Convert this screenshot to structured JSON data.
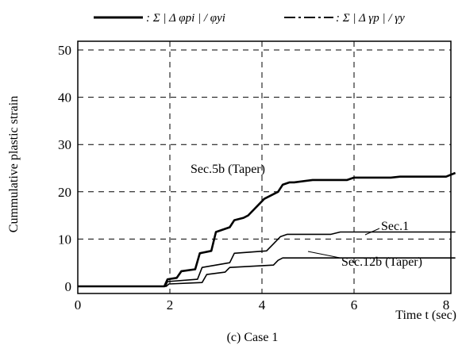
{
  "chart_data": {
    "type": "line",
    "title": "",
    "caption": "(c) Case 1",
    "xlabel": "Time t (sec)",
    "ylabel": "Cummulative plastic strain",
    "xlim": [
      0,
      8.2
    ],
    "ylim": [
      -1,
      52
    ],
    "x_ticks": [
      0,
      2,
      4,
      6,
      8
    ],
    "y_ticks": [
      0,
      10,
      20,
      30,
      40,
      50
    ],
    "x_tick_labels": [
      "0",
      "2",
      "4",
      "6",
      "8"
    ],
    "y_tick_labels": [
      "0",
      "10",
      "20",
      "30",
      "40",
      "50"
    ],
    "grid": "dashed",
    "legend_position": "top",
    "legend": [
      {
        "label": ": Σ | Δ φpi | / φyi",
        "style": "solid"
      },
      {
        "label": ": Σ | Δ γp | / γy",
        "style": "dash-dot"
      }
    ],
    "annotations": [
      {
        "text": "Sec.5b (Taper)",
        "series": 0
      },
      {
        "text": "Sec.1",
        "series": 1
      },
      {
        "text": "Sec.12b (Taper)",
        "series": 2
      }
    ],
    "series": [
      {
        "name": "Sec.5b (Taper)",
        "style": "solid",
        "stroke_width": 2.6,
        "x": [
          0,
          1.88,
          1.95,
          2.15,
          2.25,
          2.55,
          2.65,
          2.9,
          3.0,
          3.3,
          3.4,
          3.6,
          3.7,
          3.95,
          4.05,
          4.35,
          4.45,
          4.6,
          4.7,
          5.1,
          5.3,
          5.85,
          6.0,
          6.8,
          7.0,
          8.0,
          8.2
        ],
        "y": [
          0,
          0,
          1.5,
          1.8,
          3.2,
          3.6,
          7.0,
          7.5,
          11.5,
          12.5,
          14.0,
          14.5,
          15.0,
          17.5,
          18.5,
          20.0,
          21.5,
          22.0,
          22.0,
          22.5,
          22.5,
          22.5,
          23.0,
          23.0,
          23.2,
          23.2,
          24.0
        ]
      },
      {
        "name": "Sec.1",
        "style": "solid",
        "stroke_width": 1.6,
        "x": [
          0,
          1.9,
          1.95,
          2.6,
          2.7,
          3.3,
          3.4,
          4.1,
          4.25,
          4.4,
          4.55,
          5.5,
          5.7,
          8.2
        ],
        "y": [
          0,
          0,
          1.0,
          1.5,
          4.0,
          5.0,
          7.0,
          7.5,
          9.0,
          10.5,
          11.0,
          11.0,
          11.5,
          11.5
        ]
      },
      {
        "name": "Sec.12b (Taper)",
        "style": "solid",
        "stroke_width": 1.6,
        "x": [
          0,
          1.92,
          1.98,
          2.7,
          2.8,
          3.2,
          3.3,
          4.25,
          4.35,
          4.45,
          4.6,
          8.2
        ],
        "y": [
          0,
          0,
          0.5,
          0.8,
          2.5,
          3.0,
          4.0,
          4.5,
          5.5,
          6.0,
          6.0,
          6.0
        ]
      }
    ]
  }
}
